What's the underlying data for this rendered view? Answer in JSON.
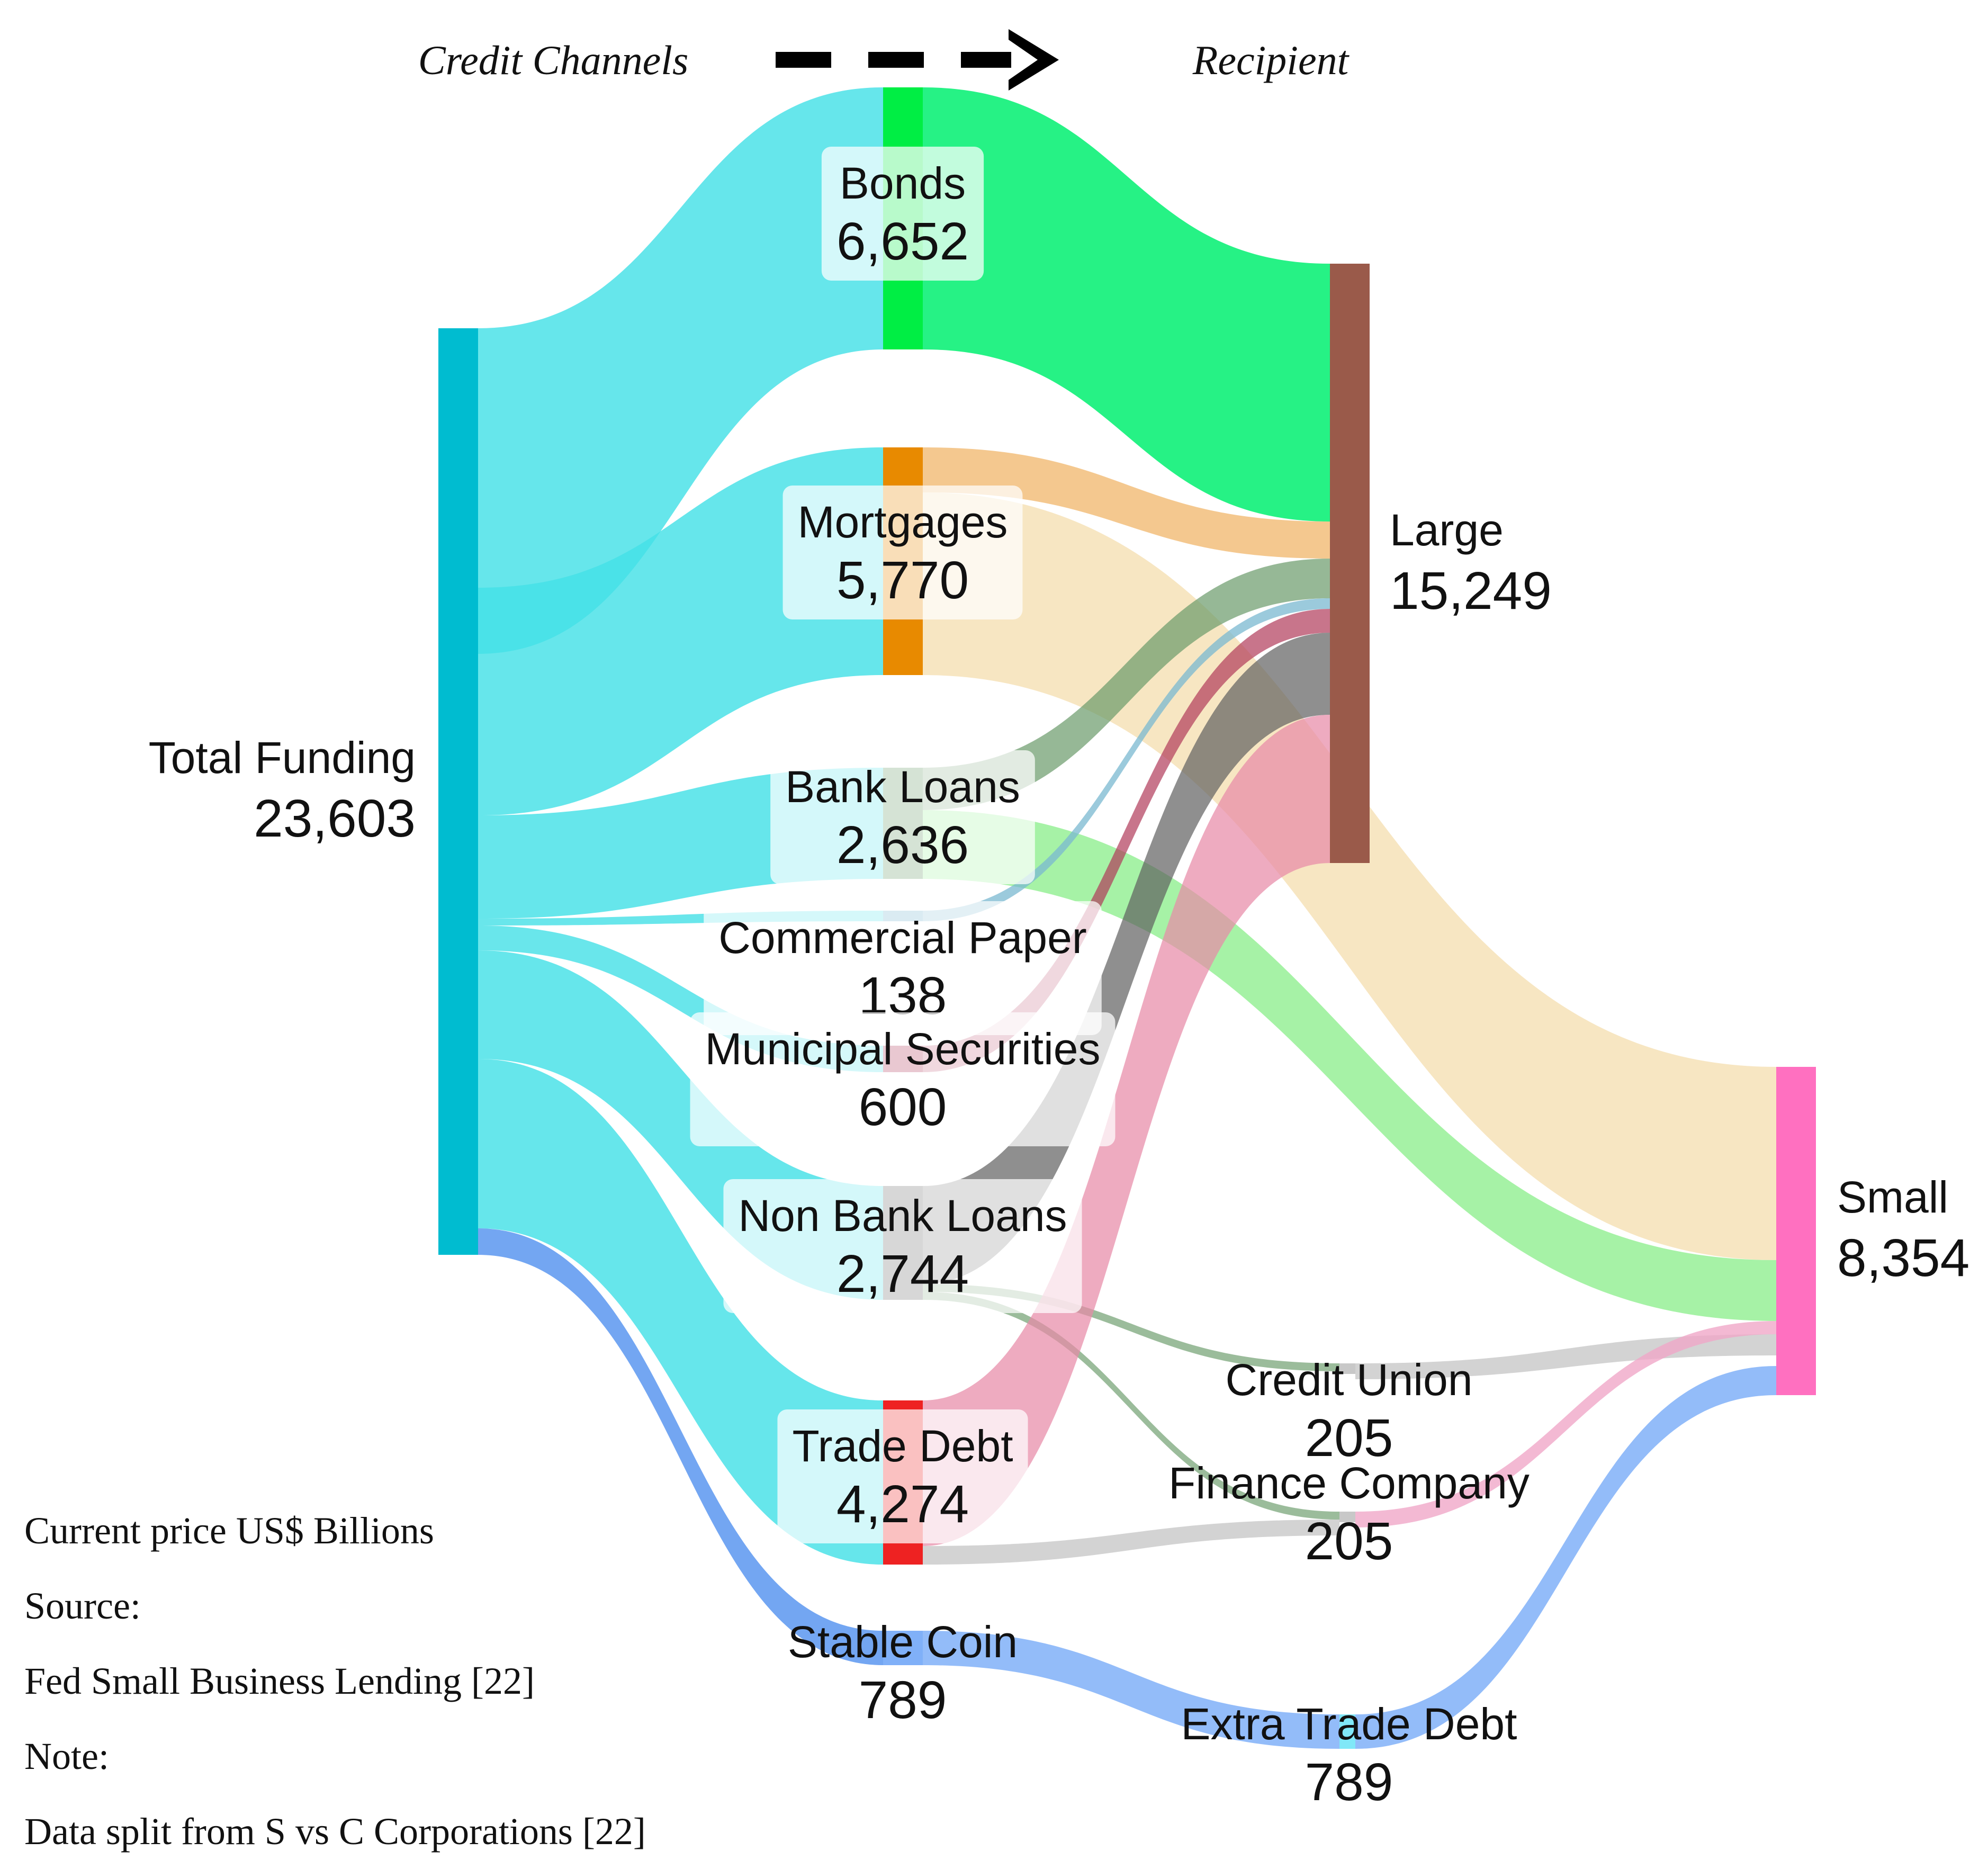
{
  "header": {
    "left": "Credit Channels",
    "right": "Recipient"
  },
  "notes": [
    "Current price US$ Billions",
    "Source:",
    "Fed Small Business Lending [22]",
    "Note:",
    "Data split from S vs C Corporations [22]"
  ],
  "nodes": [
    {
      "id": "total",
      "name": "Total Funding",
      "value": "23,603",
      "color": "#00bcd0"
    },
    {
      "id": "bonds",
      "name": "Bonds",
      "value": "6,652",
      "color": "#00ee44"
    },
    {
      "id": "mortgages",
      "name": "Mortgages",
      "value": "5,770",
      "color": "#e88a00"
    },
    {
      "id": "bank",
      "name": "Bank Loans",
      "value": "2,636",
      "color": "#6a9a6a"
    },
    {
      "id": "cp",
      "name": "Commercial Paper",
      "value": "138",
      "color": "#7ab8d0"
    },
    {
      "id": "muni",
      "name": "Municipal Securities",
      "value": "600",
      "color": "#b03a5a"
    },
    {
      "id": "nonbank",
      "name": "Non Bank Loans",
      "value": "2,744",
      "color": "#707070"
    },
    {
      "id": "trade",
      "name": "Trade Debt",
      "value": "4,274",
      "color": "#ee2222"
    },
    {
      "id": "stable",
      "name": "Stable Coin",
      "value": "789",
      "color": "#80b0f8"
    },
    {
      "id": "large",
      "name": "Large",
      "value": "15,249",
      "color": "#9a5a4a"
    },
    {
      "id": "small",
      "name": "Small",
      "value": "8,354",
      "color": "#ff70c0"
    },
    {
      "id": "cu",
      "name": "Credit Union",
      "value": "205",
      "color": "#c8c8c8"
    },
    {
      "id": "fc",
      "name": "Finance Company",
      "value": "205",
      "color": "#c8c8c8"
    },
    {
      "id": "etd",
      "name": "Extra Trade Debt",
      "value": "789",
      "color": "#80e8f8"
    }
  ],
  "links": [
    {
      "source": "total",
      "target": "bonds",
      "value": 6652
    },
    {
      "source": "total",
      "target": "mortgages",
      "value": 5770
    },
    {
      "source": "total",
      "target": "bank",
      "value": 2636
    },
    {
      "source": "total",
      "target": "cp",
      "value": 138
    },
    {
      "source": "total",
      "target": "muni",
      "value": 600
    },
    {
      "source": "total",
      "target": "nonbank",
      "value": 2744
    },
    {
      "source": "total",
      "target": "trade",
      "value": 4274
    },
    {
      "source": "total",
      "target": "stable",
      "value": 789
    },
    {
      "source": "bonds",
      "target": "large"
    },
    {
      "source": "mortgages",
      "target": "large"
    },
    {
      "source": "mortgages",
      "target": "small"
    },
    {
      "source": "bank",
      "target": "large"
    },
    {
      "source": "bank",
      "target": "small"
    },
    {
      "source": "cp",
      "target": "large"
    },
    {
      "source": "muni",
      "target": "large"
    },
    {
      "source": "nonbank",
      "target": "large"
    },
    {
      "source": "nonbank",
      "target": "cu"
    },
    {
      "source": "nonbank",
      "target": "fc"
    },
    {
      "source": "trade",
      "target": "large"
    },
    {
      "source": "trade",
      "target": "fc"
    },
    {
      "source": "cu",
      "target": "small"
    },
    {
      "source": "fc",
      "target": "small"
    },
    {
      "source": "stable",
      "target": "etd"
    },
    {
      "source": "etd",
      "target": "small"
    }
  ]
}
